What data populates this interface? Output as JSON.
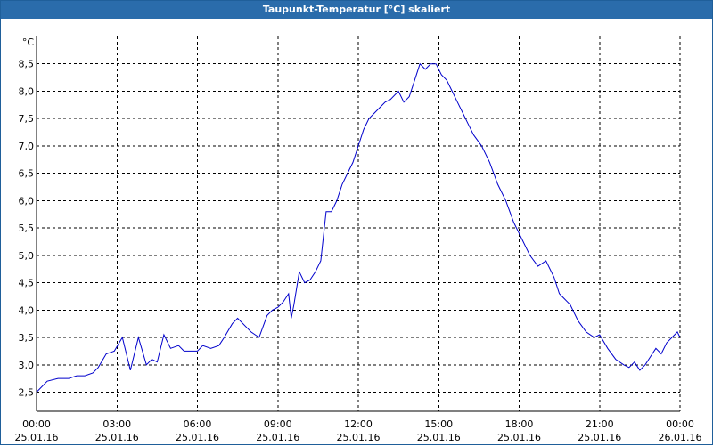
{
  "window": {
    "title": "Taupunkt-Temperatur [°C] skaliert"
  },
  "chart_data": {
    "type": "line",
    "title": "Taupunkt-Temperatur [°C] skaliert",
    "ylabel": "°C",
    "xlabel": "",
    "ylim": [
      2.15,
      9.0
    ],
    "xlim": [
      0,
      24
    ],
    "grid": true,
    "yticks": [
      2.5,
      3.0,
      3.5,
      4.0,
      4.5,
      5.0,
      5.5,
      6.0,
      6.5,
      7.0,
      7.5,
      8.0,
      8.5
    ],
    "ytick_labels": [
      "2,5",
      "3,0",
      "3,5",
      "4,0",
      "4,5",
      "5,0",
      "5,5",
      "6,0",
      "6,5",
      "7,0",
      "7,5",
      "8,0",
      "8,5"
    ],
    "xticks": [
      {
        "x": 0,
        "time": "00:00",
        "date": "25.01.16"
      },
      {
        "x": 3,
        "time": "03:00",
        "date": "25.01.16"
      },
      {
        "x": 6,
        "time": "06:00",
        "date": "25.01.16"
      },
      {
        "x": 9,
        "time": "09:00",
        "date": "25.01.16"
      },
      {
        "x": 12,
        "time": "12:00",
        "date": "25.01.16"
      },
      {
        "x": 15,
        "time": "15:00",
        "date": "25.01.16"
      },
      {
        "x": 18,
        "time": "18:00",
        "date": "25.01.16"
      },
      {
        "x": 21,
        "time": "21:00",
        "date": "25.01.16"
      },
      {
        "x": 24,
        "time": "00:00",
        "date": "26.01.16"
      }
    ],
    "series": [
      {
        "color": "#0000cc",
        "x": [
          0,
          0.4,
          0.8,
          1.2,
          1.5,
          1.8,
          2.1,
          2.3,
          2.6,
          2.9,
          3.2,
          3.5,
          3.8,
          4.1,
          4.3,
          4.5,
          4.75,
          5.0,
          5.3,
          5.5,
          5.8,
          6.0,
          6.2,
          6.5,
          6.8,
          7.0,
          7.3,
          7.5,
          7.8,
          8.0,
          8.3,
          8.6,
          8.8,
          9.0,
          9.2,
          9.4,
          9.5,
          9.6,
          9.8,
          10.0,
          10.2,
          10.4,
          10.6,
          10.8,
          11.0,
          11.2,
          11.4,
          11.6,
          11.8,
          12.0,
          12.2,
          12.4,
          12.6,
          12.8,
          13.0,
          13.2,
          13.5,
          13.7,
          13.9,
          14.1,
          14.3,
          14.5,
          14.7,
          14.9,
          15.1,
          15.3,
          15.5,
          15.7,
          15.9,
          16.1,
          16.3,
          16.6,
          16.9,
          17.2,
          17.5,
          17.8,
          18.1,
          18.4,
          18.7,
          19.0,
          19.3,
          19.5,
          19.7,
          19.9,
          20.2,
          20.5,
          20.8,
          21.0,
          21.3,
          21.6,
          21.9,
          22.1,
          22.3,
          22.5,
          22.7,
          22.9,
          23.1,
          23.3,
          23.5,
          23.7,
          23.9,
          24.0
        ],
        "values": [
          2.5,
          2.7,
          2.75,
          2.75,
          2.8,
          2.8,
          2.85,
          2.95,
          3.2,
          3.25,
          3.5,
          2.9,
          3.5,
          3.0,
          3.1,
          3.05,
          3.55,
          3.3,
          3.35,
          3.25,
          3.25,
          3.25,
          3.35,
          3.3,
          3.35,
          3.5,
          3.75,
          3.85,
          3.7,
          3.6,
          3.5,
          3.9,
          4.0,
          4.05,
          4.15,
          4.3,
          3.85,
          4.1,
          4.7,
          4.5,
          4.55,
          4.7,
          4.9,
          5.8,
          5.8,
          6.0,
          6.3,
          6.5,
          6.7,
          7.0,
          7.3,
          7.5,
          7.6,
          7.7,
          7.8,
          7.85,
          8.0,
          7.8,
          7.9,
          8.2,
          8.5,
          8.4,
          8.5,
          8.5,
          8.3,
          8.2,
          8.0,
          7.8,
          7.6,
          7.4,
          7.2,
          7.0,
          6.7,
          6.3,
          6.0,
          5.6,
          5.3,
          5.0,
          4.8,
          4.9,
          4.6,
          4.3,
          4.2,
          4.1,
          3.8,
          3.6,
          3.5,
          3.55,
          3.3,
          3.1,
          3.0,
          2.95,
          3.05,
          2.9,
          3.0,
          3.15,
          3.3,
          3.2,
          3.4,
          3.5,
          3.6,
          3.5
        ]
      }
    ]
  }
}
